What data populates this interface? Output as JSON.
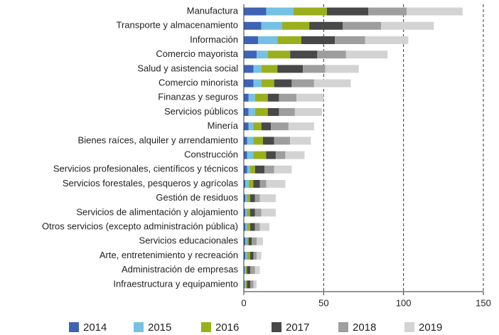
{
  "chart_data": {
    "type": "stacked_barh",
    "categories": [
      "Manufactura",
      "Transporte y almacenamiento",
      "Información",
      "Comercio mayorista",
      "Salud y asistencia social",
      "Comercio minorista",
      "Finanzas y seguros",
      "Servicios públicos",
      "Minería",
      "Bienes raíces, alquiler y arrendamiento",
      "Construcción",
      "Servicios profesionales, científicos y técnicos",
      "Servicios forestales, pesqueros y agrícolas",
      "Gestión de residuos",
      "Servicios de alimentación y alojamiento",
      "Otros servicios (excepto administración pública)",
      "Servicios educacionales",
      "Arte, entretenimiento y recreación",
      "Administración de empresas",
      "Infraestructura y equipamiento"
    ],
    "series": [
      {
        "name": "2014",
        "color": "#3f63b4",
        "values": [
          14,
          11,
          9,
          8,
          6,
          6,
          3,
          3,
          3,
          2,
          2,
          2,
          1,
          1,
          1,
          1,
          1,
          1,
          0.5,
          0.5
        ]
      },
      {
        "name": "2015",
        "color": "#75c1e4",
        "values": [
          17,
          13,
          12,
          7,
          5,
          5,
          4,
          4,
          3,
          4,
          4,
          2,
          2,
          1,
          1,
          1,
          1,
          1,
          0.5,
          0.5
        ]
      },
      {
        "name": "2016",
        "color": "#9aaf1c",
        "values": [
          21,
          17,
          15,
          14,
          10,
          8,
          8,
          8,
          5,
          6,
          8,
          3,
          3,
          2,
          2,
          2,
          1,
          2,
          1,
          1
        ]
      },
      {
        "name": "2017",
        "color": "#484848",
        "values": [
          26,
          21,
          21,
          17,
          16,
          11,
          7,
          7,
          6,
          7,
          6,
          6,
          4,
          3,
          3,
          3,
          2,
          2,
          2,
          2
        ]
      },
      {
        "name": "2018",
        "color": "#9e9e9e",
        "values": [
          24,
          24,
          19,
          18,
          14,
          14,
          11,
          10,
          11,
          10,
          6,
          6,
          4,
          3,
          4,
          3,
          3,
          2,
          3,
          2
        ]
      },
      {
        "name": "2019",
        "color": "#d3d3d3",
        "values": [
          35,
          33,
          27,
          26,
          21,
          23,
          17,
          17,
          16,
          13,
          12,
          11,
          12,
          10,
          9,
          6,
          4,
          3,
          3,
          2
        ]
      }
    ],
    "xlim": [
      0,
      150
    ],
    "xticks": [
      0,
      50,
      100,
      150
    ],
    "grid": true,
    "legend": "bottom"
  }
}
